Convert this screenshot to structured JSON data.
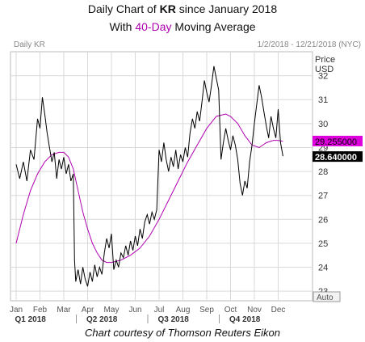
{
  "title": {
    "line1_prefix": "Daily Chart of ",
    "ticker": "KR",
    "line1_suffix": " since January 2018",
    "line2_prefix": "With ",
    "ma_label": "40-Day",
    "line2_suffix": " Moving Average"
  },
  "credit": "Chart courtesy of Thomson Reuters Eikon",
  "colors": {
    "price": "#000000",
    "ma": "#b000b0",
    "grid": "#d9d9d9",
    "ma_tag": "#dd00dd",
    "price_tag": "#000000"
  },
  "chart_data": {
    "type": "line",
    "header_left": "Daily KR",
    "header_right": "1/2/2018 - 12/21/2018 (NYC)",
    "y_axis_title": [
      "Price",
      "USD"
    ],
    "y_ticks": [
      23,
      24,
      25,
      26,
      27,
      28,
      29,
      30,
      31,
      32
    ],
    "ylim": [
      22.6,
      33.0
    ],
    "x_months": [
      "Jan",
      "Feb",
      "Mar",
      "Apr",
      "May",
      "Jun",
      "Jul",
      "Aug",
      "Sep",
      "Oct",
      "Nov",
      "Dec"
    ],
    "quarters": [
      "Q1 2018",
      "Q2 2018",
      "Q3 2018",
      "Q4 2018"
    ],
    "auto_label": "Auto",
    "last_ma": "29.255000",
    "last_price": "28.640000",
    "price_series": [
      {
        "m": 0.0,
        "v": 28.3
      },
      {
        "m": 0.15,
        "v": 27.7
      },
      {
        "m": 0.3,
        "v": 28.4
      },
      {
        "m": 0.45,
        "v": 27.6
      },
      {
        "m": 0.6,
        "v": 28.9
      },
      {
        "m": 0.75,
        "v": 28.5
      },
      {
        "m": 0.9,
        "v": 30.2
      },
      {
        "m": 1.0,
        "v": 29.8
      },
      {
        "m": 1.1,
        "v": 31.1
      },
      {
        "m": 1.2,
        "v": 30.4
      },
      {
        "m": 1.3,
        "v": 29.6
      },
      {
        "m": 1.4,
        "v": 29.0
      },
      {
        "m": 1.5,
        "v": 28.4
      },
      {
        "m": 1.6,
        "v": 28.8
      },
      {
        "m": 1.7,
        "v": 27.7
      },
      {
        "m": 1.8,
        "v": 28.5
      },
      {
        "m": 1.9,
        "v": 28.1
      },
      {
        "m": 2.0,
        "v": 28.6
      },
      {
        "m": 2.1,
        "v": 27.9
      },
      {
        "m": 2.2,
        "v": 28.3
      },
      {
        "m": 2.3,
        "v": 27.6
      },
      {
        "m": 2.4,
        "v": 27.9
      },
      {
        "m": 2.45,
        "v": 24.3
      },
      {
        "m": 2.5,
        "v": 23.4
      },
      {
        "m": 2.6,
        "v": 23.9
      },
      {
        "m": 2.7,
        "v": 23.3
      },
      {
        "m": 2.8,
        "v": 24.0
      },
      {
        "m": 2.9,
        "v": 23.5
      },
      {
        "m": 3.0,
        "v": 23.2
      },
      {
        "m": 3.1,
        "v": 23.8
      },
      {
        "m": 3.2,
        "v": 23.4
      },
      {
        "m": 3.3,
        "v": 24.1
      },
      {
        "m": 3.4,
        "v": 23.6
      },
      {
        "m": 3.5,
        "v": 24.0
      },
      {
        "m": 3.6,
        "v": 23.7
      },
      {
        "m": 3.7,
        "v": 24.6
      },
      {
        "m": 3.8,
        "v": 25.2
      },
      {
        "m": 3.9,
        "v": 24.8
      },
      {
        "m": 4.0,
        "v": 25.4
      },
      {
        "m": 4.1,
        "v": 23.9
      },
      {
        "m": 4.2,
        "v": 24.3
      },
      {
        "m": 4.3,
        "v": 24.0
      },
      {
        "m": 4.4,
        "v": 24.6
      },
      {
        "m": 4.5,
        "v": 24.4
      },
      {
        "m": 4.6,
        "v": 24.9
      },
      {
        "m": 4.7,
        "v": 24.5
      },
      {
        "m": 4.8,
        "v": 25.1
      },
      {
        "m": 4.9,
        "v": 24.7
      },
      {
        "m": 5.0,
        "v": 25.3
      },
      {
        "m": 5.1,
        "v": 24.9
      },
      {
        "m": 5.2,
        "v": 25.6
      },
      {
        "m": 5.3,
        "v": 25.2
      },
      {
        "m": 5.4,
        "v": 25.9
      },
      {
        "m": 5.5,
        "v": 26.2
      },
      {
        "m": 5.6,
        "v": 25.8
      },
      {
        "m": 5.7,
        "v": 26.3
      },
      {
        "m": 5.8,
        "v": 26.0
      },
      {
        "m": 5.9,
        "v": 26.4
      },
      {
        "m": 6.0,
        "v": 28.9
      },
      {
        "m": 6.1,
        "v": 28.4
      },
      {
        "m": 6.2,
        "v": 29.2
      },
      {
        "m": 6.3,
        "v": 28.5
      },
      {
        "m": 6.4,
        "v": 28.0
      },
      {
        "m": 6.5,
        "v": 28.6
      },
      {
        "m": 6.6,
        "v": 28.2
      },
      {
        "m": 6.7,
        "v": 28.9
      },
      {
        "m": 6.8,
        "v": 28.1
      },
      {
        "m": 6.9,
        "v": 28.7
      },
      {
        "m": 7.0,
        "v": 28.4
      },
      {
        "m": 7.1,
        "v": 29.0
      },
      {
        "m": 7.2,
        "v": 28.6
      },
      {
        "m": 7.3,
        "v": 29.6
      },
      {
        "m": 7.4,
        "v": 30.2
      },
      {
        "m": 7.5,
        "v": 29.8
      },
      {
        "m": 7.6,
        "v": 30.5
      },
      {
        "m": 7.7,
        "v": 30.1
      },
      {
        "m": 7.8,
        "v": 30.9
      },
      {
        "m": 7.9,
        "v": 31.8
      },
      {
        "m": 8.0,
        "v": 31.3
      },
      {
        "m": 8.1,
        "v": 30.9
      },
      {
        "m": 8.2,
        "v": 31.6
      },
      {
        "m": 8.3,
        "v": 32.4
      },
      {
        "m": 8.4,
        "v": 31.9
      },
      {
        "m": 8.5,
        "v": 31.4
      },
      {
        "m": 8.6,
        "v": 28.5
      },
      {
        "m": 8.7,
        "v": 29.2
      },
      {
        "m": 8.8,
        "v": 29.8
      },
      {
        "m": 8.9,
        "v": 29.3
      },
      {
        "m": 9.0,
        "v": 28.9
      },
      {
        "m": 9.1,
        "v": 29.5
      },
      {
        "m": 9.2,
        "v": 29.1
      },
      {
        "m": 9.3,
        "v": 28.5
      },
      {
        "m": 9.4,
        "v": 27.5
      },
      {
        "m": 9.5,
        "v": 27.0
      },
      {
        "m": 9.6,
        "v": 27.6
      },
      {
        "m": 9.7,
        "v": 27.3
      },
      {
        "m": 9.8,
        "v": 28.4
      },
      {
        "m": 9.9,
        "v": 29.1
      },
      {
        "m": 10.0,
        "v": 30.0
      },
      {
        "m": 10.1,
        "v": 30.8
      },
      {
        "m": 10.2,
        "v": 31.6
      },
      {
        "m": 10.3,
        "v": 31.1
      },
      {
        "m": 10.4,
        "v": 30.5
      },
      {
        "m": 10.5,
        "v": 29.9
      },
      {
        "m": 10.6,
        "v": 29.4
      },
      {
        "m": 10.7,
        "v": 30.3
      },
      {
        "m": 10.8,
        "v": 29.8
      },
      {
        "m": 10.9,
        "v": 29.4
      },
      {
        "m": 11.0,
        "v": 30.6
      },
      {
        "m": 11.1,
        "v": 29.2
      },
      {
        "m": 11.2,
        "v": 28.64
      }
    ],
    "ma_series": [
      {
        "m": 0.0,
        "v": 25.0
      },
      {
        "m": 0.3,
        "v": 26.2
      },
      {
        "m": 0.6,
        "v": 27.2
      },
      {
        "m": 0.9,
        "v": 27.9
      },
      {
        "m": 1.2,
        "v": 28.4
      },
      {
        "m": 1.5,
        "v": 28.7
      },
      {
        "m": 1.8,
        "v": 28.8
      },
      {
        "m": 2.0,
        "v": 28.8
      },
      {
        "m": 2.2,
        "v": 28.6
      },
      {
        "m": 2.4,
        "v": 28.1
      },
      {
        "m": 2.6,
        "v": 27.2
      },
      {
        "m": 2.8,
        "v": 26.3
      },
      {
        "m": 3.0,
        "v": 25.6
      },
      {
        "m": 3.2,
        "v": 25.0
      },
      {
        "m": 3.4,
        "v": 24.6
      },
      {
        "m": 3.6,
        "v": 24.3
      },
      {
        "m": 3.8,
        "v": 24.2
      },
      {
        "m": 4.0,
        "v": 24.2
      },
      {
        "m": 4.4,
        "v": 24.3
      },
      {
        "m": 4.8,
        "v": 24.5
      },
      {
        "m": 5.2,
        "v": 24.8
      },
      {
        "m": 5.6,
        "v": 25.3
      },
      {
        "m": 6.0,
        "v": 26.0
      },
      {
        "m": 6.4,
        "v": 26.8
      },
      {
        "m": 6.8,
        "v": 27.6
      },
      {
        "m": 7.2,
        "v": 28.4
      },
      {
        "m": 7.6,
        "v": 29.1
      },
      {
        "m": 8.0,
        "v": 29.8
      },
      {
        "m": 8.4,
        "v": 30.3
      },
      {
        "m": 8.8,
        "v": 30.4
      },
      {
        "m": 9.0,
        "v": 30.3
      },
      {
        "m": 9.3,
        "v": 30.0
      },
      {
        "m": 9.6,
        "v": 29.5
      },
      {
        "m": 9.9,
        "v": 29.1
      },
      {
        "m": 10.2,
        "v": 29.0
      },
      {
        "m": 10.5,
        "v": 29.2
      },
      {
        "m": 10.8,
        "v": 29.3
      },
      {
        "m": 11.0,
        "v": 29.3
      },
      {
        "m": 11.2,
        "v": 29.255
      }
    ]
  }
}
